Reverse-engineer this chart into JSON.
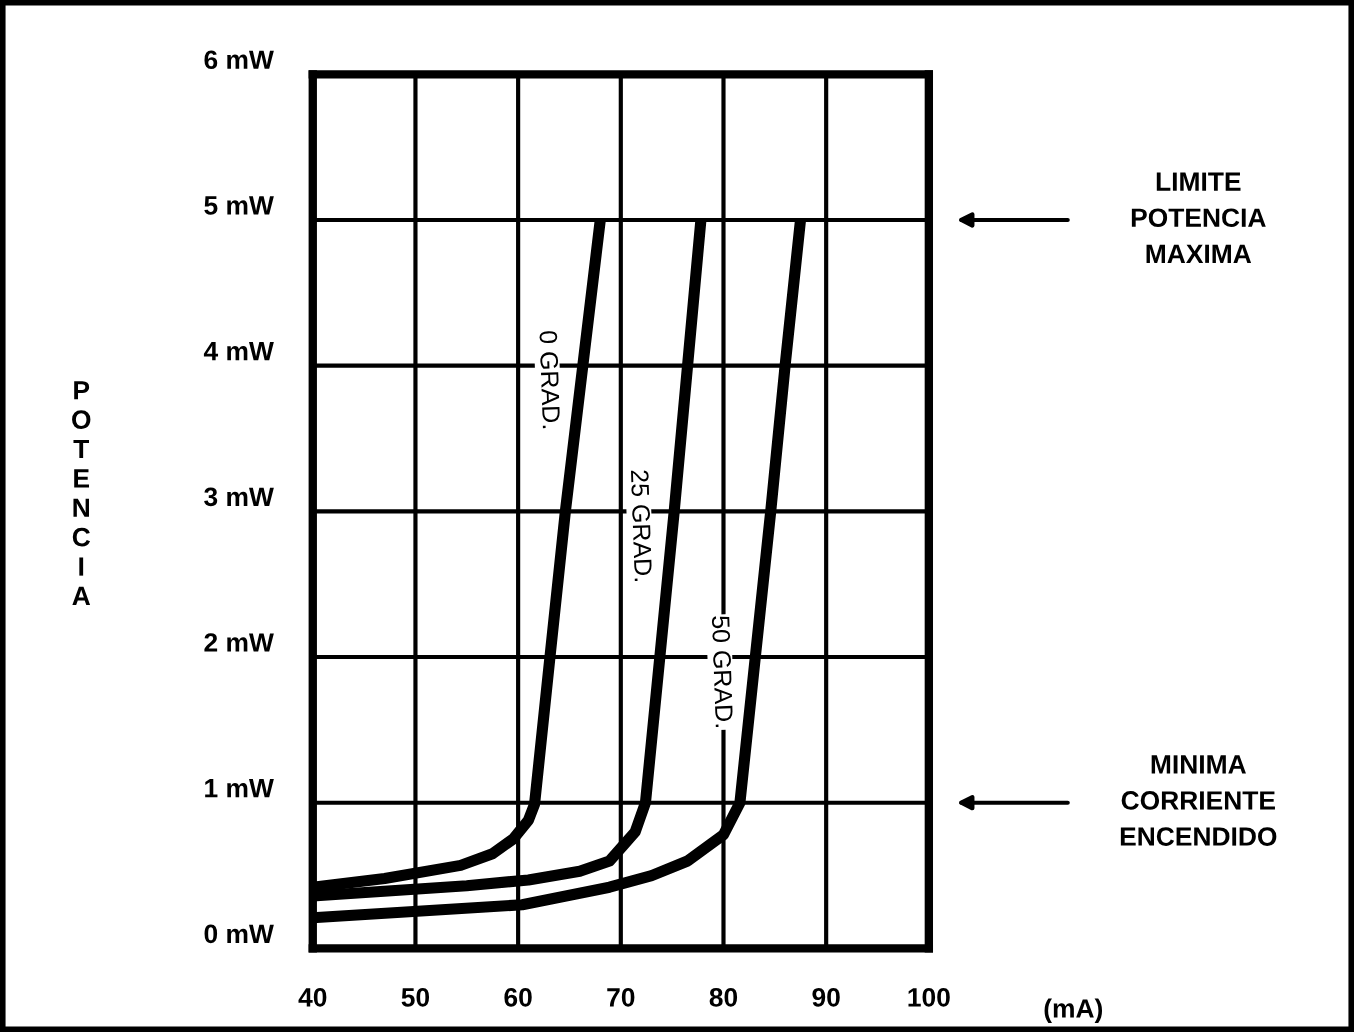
{
  "chart_data": {
    "type": "line",
    "ylabel": "POTENCIA",
    "xlim": [
      40,
      100
    ],
    "xticks": [
      40,
      50,
      60,
      70,
      80,
      90,
      100
    ],
    "ylim": [
      0,
      6
    ],
    "yticks": [
      {
        "value": 0,
        "label": "0 mW"
      },
      {
        "value": 1,
        "label": "1 mW"
      },
      {
        "value": 2,
        "label": "2 mW"
      },
      {
        "value": 3,
        "label": "3 mW"
      },
      {
        "value": 4,
        "label": "4 mW"
      },
      {
        "value": 5,
        "label": "5 mW"
      },
      {
        "value": 6,
        "label": "6 mW"
      }
    ],
    "grid": true,
    "legend": false,
    "marker": "none",
    "line_style": "solid",
    "series": [
      {
        "name": "0 GRAD.",
        "color": "#000000",
        "x": [
          40,
          47,
          54.4,
          57.5,
          59.5,
          61,
          61.6,
          63.1,
          64.6,
          66.3,
          68
        ],
        "values": [
          0.42,
          0.48,
          0.57,
          0.65,
          0.75,
          0.88,
          0.99,
          2,
          3,
          4,
          5
        ]
      },
      {
        "name": "25 GRAD.",
        "color": "#000000",
        "x": [
          40,
          55,
          61,
          66,
          68.9,
          71.4,
          72.4,
          73.8,
          75.2,
          76.5,
          77.8
        ],
        "values": [
          0.36,
          0.43,
          0.47,
          0.53,
          0.6,
          0.8,
          1.0,
          2,
          3,
          4,
          5
        ]
      },
      {
        "name": "50 GRAD.",
        "color": "#000000",
        "x": [
          40,
          60.4,
          68.9,
          73,
          76.5,
          80,
          81.6,
          83.1,
          84.6,
          86.0,
          87.5
        ],
        "values": [
          0.21,
          0.3,
          0.42,
          0.5,
          0.6,
          0.78,
          1.0,
          2,
          3,
          4,
          5
        ]
      }
    ],
    "annotations": [
      "LIMITE\nPOTENCIA\nMAXIMA",
      "MINIMA\nCORRIENTE\nENCENDIDO",
      "(mA)"
    ]
  }
}
